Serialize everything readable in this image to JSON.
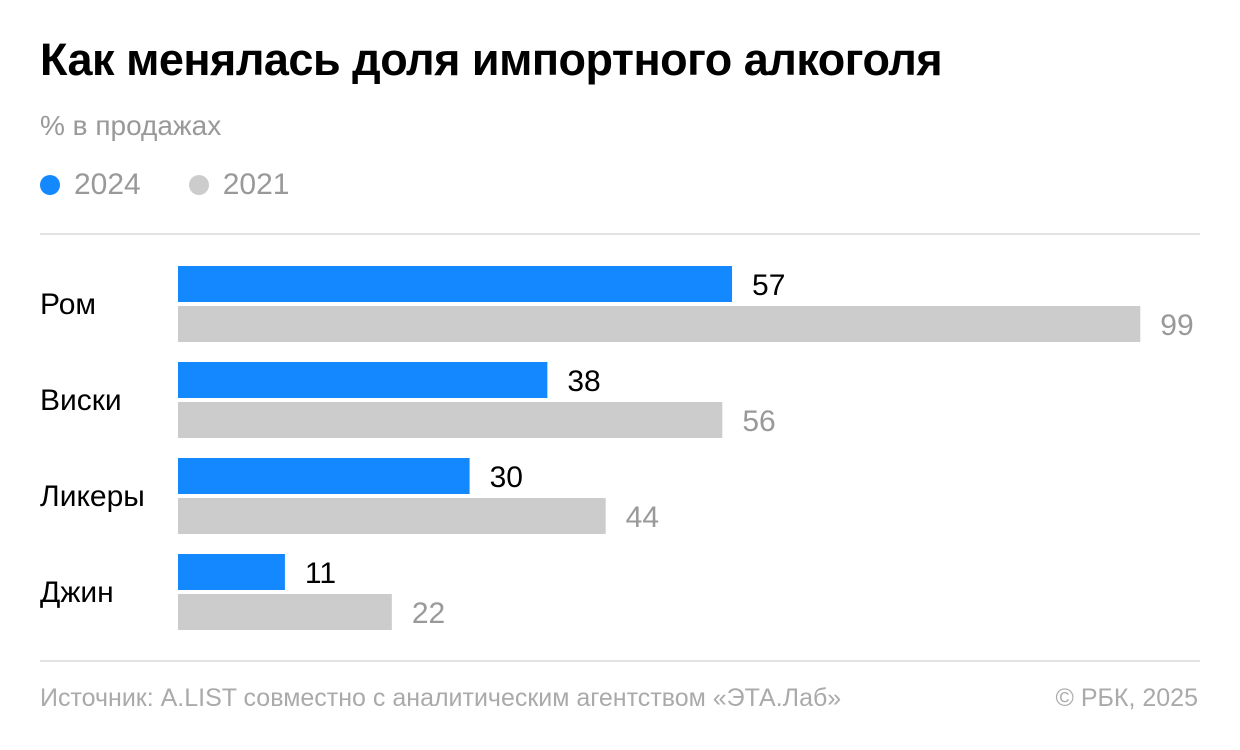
{
  "header": {
    "title": "Как менялась доля импортного алкоголя",
    "subtitle": "% в продажах"
  },
  "colors": {
    "series_2024": "#1488ff",
    "series_2021": "#cccccc",
    "label_2024": "#000000",
    "label_2021": "#999999",
    "category_text": "#000000"
  },
  "chart_data": {
    "type": "bar",
    "orientation": "horizontal",
    "categories": [
      "Ром",
      "Виски",
      "Ликеры",
      "Джин"
    ],
    "series": [
      {
        "name": "2024",
        "values": [
          57,
          38,
          30,
          11
        ]
      },
      {
        "name": "2021",
        "values": [
          99,
          56,
          44,
          22
        ]
      }
    ],
    "xlim": [
      0,
      100
    ],
    "grid": false,
    "legend_position": "top-left",
    "data_labels": true
  },
  "footer": {
    "source": "Источник: A.LIST совместно с аналитическим агентством «ЭТА.Лаб»",
    "copyright": "© РБК, 2025"
  }
}
